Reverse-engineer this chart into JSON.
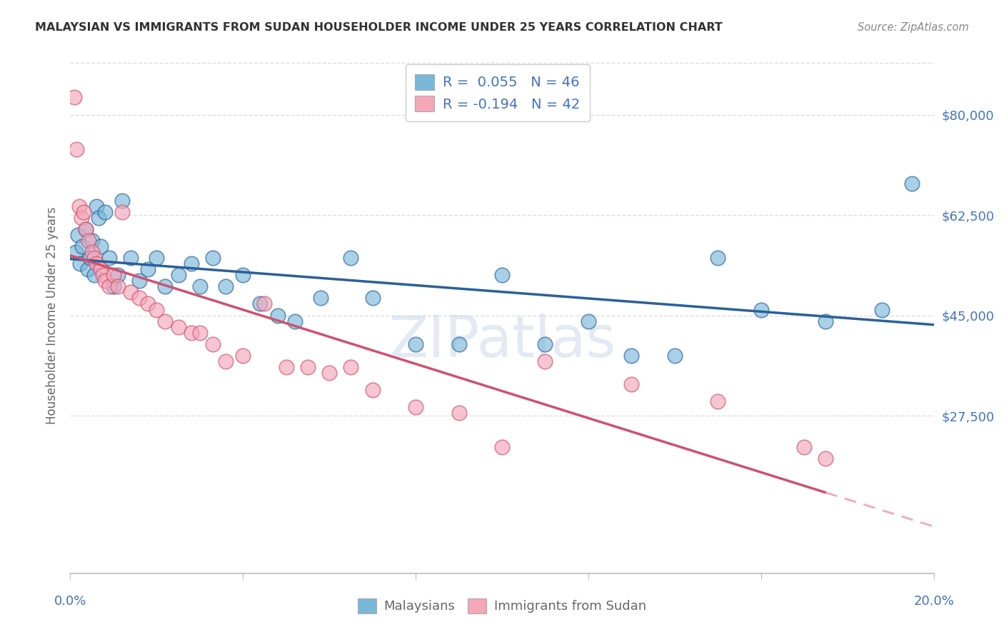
{
  "title": "MALAYSIAN VS IMMIGRANTS FROM SUDAN HOUSEHOLDER INCOME UNDER 25 YEARS CORRELATION CHART",
  "source": "Source: ZipAtlas.com",
  "ylabel": "Householder Income Under 25 years",
  "xlim": [
    0.0,
    0.2
  ],
  "ylim": [
    0,
    90000
  ],
  "yticks": [
    27500,
    45000,
    62500,
    80000
  ],
  "ytick_labels": [
    "$27,500",
    "$45,000",
    "$62,500",
    "$80,000"
  ],
  "xtick_left": "0.0%",
  "xtick_right": "20.0%",
  "legend_r1": "0.055",
  "legend_n1": "46",
  "legend_r2": "-0.194",
  "legend_n2": "42",
  "blue_color": "#7ab8d9",
  "pink_color": "#f4a7b9",
  "blue_line_color": "#2a6099",
  "pink_line_color": "#d05070",
  "bg_color": "#ffffff",
  "grid_color": "#d8d8d8",
  "title_color": "#333333",
  "axis_color": "#4472c4",
  "label_color": "#666666",
  "watermark": "ZIPatlas",
  "blue_x": [
    0.0012,
    0.0018,
    0.0022,
    0.0028,
    0.0035,
    0.004,
    0.0045,
    0.005,
    0.0055,
    0.006,
    0.0065,
    0.007,
    0.008,
    0.009,
    0.01,
    0.011,
    0.012,
    0.014,
    0.016,
    0.018,
    0.02,
    0.022,
    0.025,
    0.028,
    0.03,
    0.033,
    0.036,
    0.04,
    0.044,
    0.048,
    0.052,
    0.058,
    0.065,
    0.07,
    0.08,
    0.09,
    0.1,
    0.11,
    0.12,
    0.13,
    0.14,
    0.15,
    0.16,
    0.175,
    0.188,
    0.195
  ],
  "blue_y": [
    56000,
    59000,
    54000,
    57000,
    60000,
    53000,
    55000,
    58000,
    52000,
    64000,
    62000,
    57000,
    63000,
    55000,
    50000,
    52000,
    65000,
    55000,
    51000,
    53000,
    55000,
    50000,
    52000,
    54000,
    50000,
    55000,
    50000,
    52000,
    47000,
    45000,
    44000,
    48000,
    55000,
    48000,
    40000,
    40000,
    52000,
    40000,
    44000,
    38000,
    38000,
    55000,
    46000,
    44000,
    46000,
    68000
  ],
  "pink_x": [
    0.001,
    0.0015,
    0.002,
    0.0025,
    0.003,
    0.0035,
    0.0042,
    0.005,
    0.0055,
    0.006,
    0.007,
    0.0075,
    0.008,
    0.009,
    0.01,
    0.011,
    0.012,
    0.014,
    0.016,
    0.018,
    0.02,
    0.022,
    0.025,
    0.028,
    0.03,
    0.033,
    0.036,
    0.04,
    0.045,
    0.05,
    0.055,
    0.06,
    0.065,
    0.07,
    0.08,
    0.09,
    0.1,
    0.11,
    0.13,
    0.15,
    0.17,
    0.175
  ],
  "pink_y": [
    83000,
    74000,
    64000,
    62000,
    63000,
    60000,
    58000,
    56000,
    55000,
    54000,
    53000,
    52000,
    51000,
    50000,
    52000,
    50000,
    63000,
    49000,
    48000,
    47000,
    46000,
    44000,
    43000,
    42000,
    42000,
    40000,
    37000,
    38000,
    47000,
    36000,
    36000,
    35000,
    36000,
    32000,
    29000,
    28000,
    22000,
    37000,
    33000,
    30000,
    22000,
    20000
  ]
}
